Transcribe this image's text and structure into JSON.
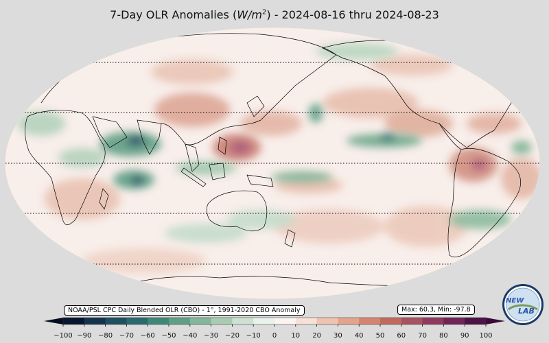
{
  "title": {
    "prefix": "7-Day OLR Anomalies (",
    "unit_main": "W/m",
    "unit_sup": "2",
    "suffix": ") - 2024-08-16 thru 2024-08-23"
  },
  "source_label": "NOAA/PSL CPC Daily Blended OLR (CBO) - 1°, 1991-2020 CBO Anomaly",
  "stats_label": "Max: 60.3,  Min: -97.8",
  "colorbar": {
    "ticks": [
      "−100",
      "−90",
      "−80",
      "−70",
      "−60",
      "−50",
      "−40",
      "−30",
      "−20",
      "−10",
      "0",
      "10",
      "20",
      "30",
      "40",
      "50",
      "60",
      "70",
      "80",
      "90",
      "100"
    ],
    "colors": [
      "#08152e",
      "#15324f",
      "#1f4f61",
      "#2b6a6c",
      "#3f8878",
      "#5e9f86",
      "#83b69a",
      "#a9ccb1",
      "#cde2d2",
      "#eaf2ec",
      "#fbf4f0",
      "#f7e0d6",
      "#efc3b1",
      "#e3a48c",
      "#d4856f",
      "#c06a5f",
      "#a85261",
      "#8e3a5e",
      "#6f2556",
      "#4d1346"
    ]
  },
  "logo": {
    "text_top": "NEW",
    "text_bottom": "LAB",
    "icon": "psl-logo-icon"
  },
  "colors": {
    "background": "#dcdcdc",
    "ocean_base": "#f8eeea",
    "positive": "#c56f62",
    "negative": "#2f7d5f"
  }
}
